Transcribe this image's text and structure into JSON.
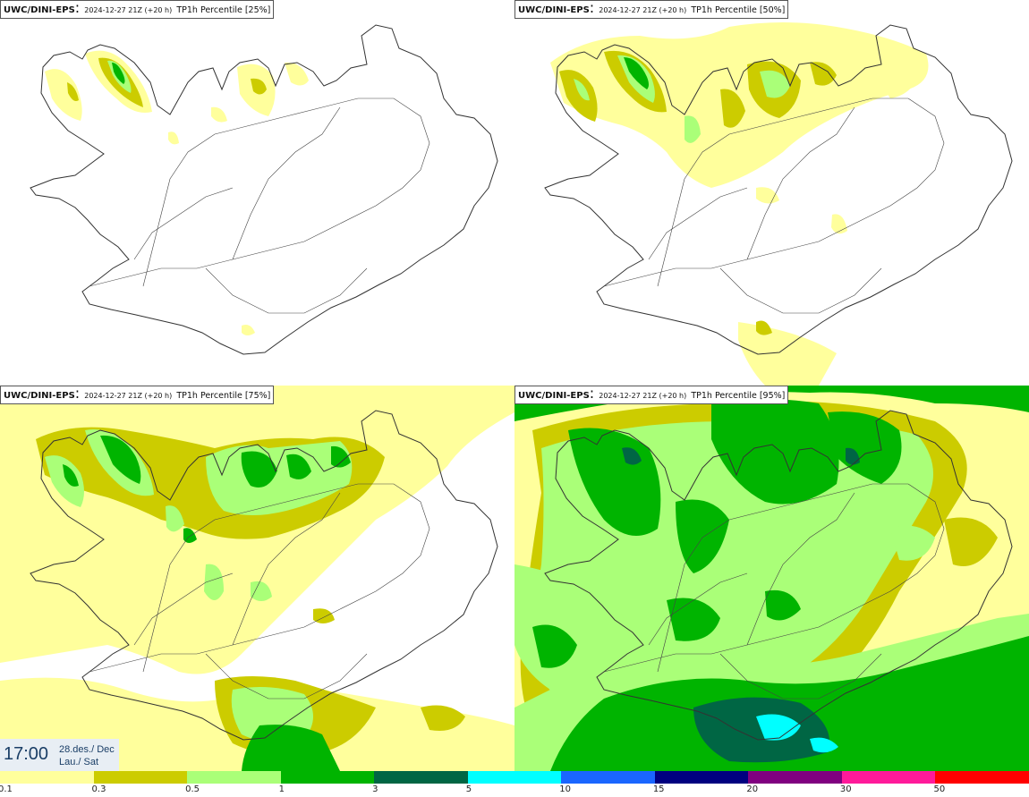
{
  "panels": [
    {
      "model": "UWC/DINI-EPS",
      "run": "2024-12-27 21Z (+20 h)",
      "variable": "TP1h Percentile [25%]"
    },
    {
      "model": "UWC/DINI-EPS",
      "run": "2024-12-27 21Z (+20 h)",
      "variable": "TP1h Percentile [50%]"
    },
    {
      "model": "UWC/DINI-EPS",
      "run": "2024-12-27 21Z (+20 h)",
      "variable": "TP1h Percentile [75%]"
    },
    {
      "model": "UWC/DINI-EPS",
      "run": "2024-12-27 21Z (+20 h)",
      "variable": "TP1h Percentile [95%]"
    }
  ],
  "valid_time": {
    "time": "17:00",
    "date_line1": "28.des./ Dec",
    "date_line2": "Lau./ Sat"
  },
  "legend": {
    "ticks": [
      "0.1",
      "0.3",
      "0.5",
      "1",
      "3",
      "5",
      "10",
      "15",
      "20",
      "30",
      "50"
    ],
    "colors": [
      "#ffff9c",
      "#cccc00",
      "#aaff78",
      "#00b400",
      "#006644",
      "#00ffff",
      "#1a66ff",
      "#000080",
      "#800080",
      "#ff1a9a",
      "#ff0000"
    ]
  },
  "map_colors": {
    "coast": "#333333",
    "roads": "#444444"
  }
}
